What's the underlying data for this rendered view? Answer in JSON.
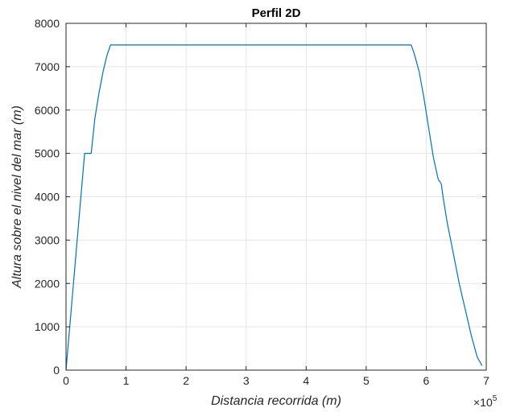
{
  "chart_data": {
    "type": "line",
    "title": "Perfil 2D",
    "xlabel": "Distancia recorrida (m)",
    "ylabel": "Altura sobre el nivel del mar (m)",
    "x_exponent_base": "×10",
    "x_exponent_power": "5",
    "xlim": [
      0,
      7
    ],
    "ylim": [
      0,
      8000
    ],
    "x_ticks": [
      0,
      1,
      2,
      3,
      4,
      5,
      6,
      7
    ],
    "y_ticks": [
      0,
      1000,
      2000,
      3000,
      4000,
      5000,
      6000,
      7000,
      8000
    ],
    "x_tick_labels": [
      "0",
      "1",
      "2",
      "3",
      "4",
      "5",
      "6",
      "7"
    ],
    "y_tick_labels": [
      "0",
      "1000",
      "2000",
      "3000",
      "4000",
      "5000",
      "6000",
      "7000",
      "8000"
    ],
    "grid": true,
    "series": [
      {
        "color": "#0072bd",
        "x": [
          0,
          0.05,
          0.31,
          0.33,
          0.42,
          0.48,
          0.55,
          0.62,
          0.68,
          0.74,
          5.75,
          5.8,
          5.88,
          5.96,
          6.05,
          6.12,
          6.2,
          6.25,
          6.28,
          6.35,
          6.45,
          6.55,
          6.65,
          6.75,
          6.85,
          6.93
        ],
        "y": [
          0,
          800,
          5000,
          5000,
          5000,
          5800,
          6400,
          6900,
          7250,
          7500,
          7500,
          7300,
          6900,
          6300,
          5500,
          4900,
          4400,
          4300,
          4000,
          3400,
          2700,
          2000,
          1400,
          800,
          300,
          100
        ]
      }
    ]
  }
}
